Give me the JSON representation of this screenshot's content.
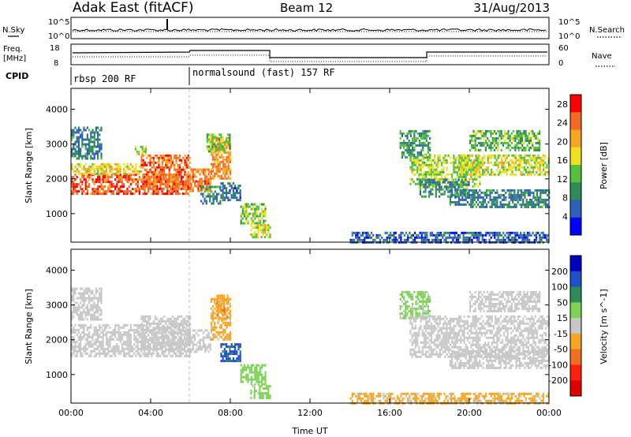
{
  "header": {
    "station": "Adak East (fitACF)",
    "beam": "Beam 12",
    "date": "31/Aug/2013"
  },
  "labels": {
    "nsky": "N.Sky",
    "nsearch": "N.Search",
    "freq_line1": "Freq.",
    "freq_line2": "[MHz]",
    "nave": "Nave",
    "cpid": "CPID",
    "nsky_tick_hi": "10^5",
    "nsky_tick_lo": "10^0",
    "nsearch_tick_hi": "10^5",
    "nsearch_tick_lo": "10^0",
    "freq_tick_hi": "18",
    "freq_tick_lo": "8",
    "nave_tick_hi": "60",
    "nave_tick_lo": "0"
  },
  "cpid_segments": [
    {
      "label": "rbsp 200 RF",
      "start": 0.0,
      "end": 6.0
    },
    {
      "label": "normalsound (fast) 157 RF",
      "start": 6.0,
      "end": 24.0
    }
  ],
  "chart_data": [
    {
      "type": "heatmap",
      "title": "",
      "xlabel": "Time UT",
      "ylabel": "Slant Range [km]",
      "xlim": [
        0,
        24
      ],
      "ylim": [
        180,
        4600
      ],
      "x_ticks": [
        "00:00",
        "04:00",
        "08:00",
        "12:00",
        "16:00",
        "20:00",
        "00:00"
      ],
      "y_ticks": [
        1000,
        2000,
        3000,
        4000
      ],
      "colorbar": {
        "label": "Power [dB]",
        "ticks": [
          4,
          8,
          12,
          16,
          20,
          24,
          28
        ],
        "range": [
          0,
          30
        ],
        "colors": [
          "#0000ff",
          "#2f5fb8",
          "#2e8b57",
          "#55c03c",
          "#f0e020",
          "#f5a623",
          "#f36b22",
          "#ff0000"
        ]
      },
      "bands": [
        {
          "t0": 0.0,
          "t1": 6.0,
          "lo": 1550,
          "hi": 2150,
          "v": 25
        },
        {
          "t0": 0.0,
          "t1": 3.5,
          "lo": 2150,
          "hi": 2450,
          "v": 18
        },
        {
          "t0": 3.5,
          "t1": 6.0,
          "lo": 1700,
          "hi": 2700,
          "v": 24
        },
        {
          "t0": 6.0,
          "t1": 7.0,
          "lo": 1650,
          "hi": 2300,
          "v": 23
        },
        {
          "t0": 7.0,
          "t1": 8.0,
          "lo": 2000,
          "hi": 3200,
          "v": 22
        },
        {
          "t0": 6.8,
          "t1": 8.0,
          "lo": 2800,
          "hi": 3300,
          "v": 14
        },
        {
          "t0": 6.5,
          "t1": 7.5,
          "lo": 1300,
          "hi": 1800,
          "v": 9
        },
        {
          "t0": 7.5,
          "t1": 8.5,
          "lo": 1400,
          "hi": 1900,
          "v": 7
        },
        {
          "t0": 8.5,
          "t1": 9.8,
          "lo": 700,
          "hi": 1300,
          "v": 14
        },
        {
          "t0": 9.0,
          "t1": 10.0,
          "lo": 350,
          "hi": 700,
          "v": 16
        },
        {
          "t0": 0.0,
          "t1": 1.5,
          "lo": 2600,
          "hi": 3500,
          "v": 8
        },
        {
          "t0": 3.2,
          "t1": 3.8,
          "lo": 2700,
          "hi": 2950,
          "v": 16
        },
        {
          "t0": 14.0,
          "t1": 24.0,
          "lo": 200,
          "hi": 480,
          "v": 6
        },
        {
          "t0": 16.5,
          "t1": 18.0,
          "lo": 2600,
          "hi": 3400,
          "v": 10
        },
        {
          "t0": 17.0,
          "t1": 20.5,
          "lo": 1750,
          "hi": 2700,
          "v": 15
        },
        {
          "t0": 17.5,
          "t1": 20.0,
          "lo": 1500,
          "hi": 2000,
          "v": 9
        },
        {
          "t0": 19.0,
          "t1": 24.0,
          "lo": 1200,
          "hi": 1700,
          "v": 8
        },
        {
          "t0": 19.5,
          "t1": 24.0,
          "lo": 2100,
          "hi": 2700,
          "v": 16
        },
        {
          "t0": 20.0,
          "t1": 23.5,
          "lo": 2800,
          "hi": 3400,
          "v": 12
        }
      ]
    },
    {
      "type": "heatmap",
      "title": "",
      "xlabel": "Time UT",
      "ylabel": "Slant Range [km]",
      "xlim": [
        0,
        24
      ],
      "ylim": [
        180,
        4600
      ],
      "x_ticks": [
        "00:00",
        "04:00",
        "08:00",
        "12:00",
        "16:00",
        "20:00",
        "00:00"
      ],
      "y_ticks": [
        1000,
        2000,
        3000,
        4000
      ],
      "colorbar": {
        "label": "Velocity [m s^-1]",
        "ticks": [
          200,
          100,
          50,
          15,
          -15,
          -50,
          -100,
          -200
        ],
        "range": [
          -250,
          250
        ],
        "colors": [
          "#0000c0",
          "#1e50c8",
          "#2e8b57",
          "#7ed357",
          "#c8c8c8",
          "#f5a623",
          "#f07020",
          "#ff2010",
          "#e00000"
        ]
      },
      "bands": [
        {
          "t0": 0.0,
          "t1": 6.0,
          "lo": 1500,
          "hi": 2450,
          "v": 0
        },
        {
          "t0": 3.5,
          "t1": 6.0,
          "lo": 1700,
          "hi": 2700,
          "v": 0
        },
        {
          "t0": 6.0,
          "t1": 7.0,
          "lo": 1650,
          "hi": 2300,
          "v": 0
        },
        {
          "t0": 7.0,
          "t1": 8.0,
          "lo": 2000,
          "hi": 3200,
          "v": -40
        },
        {
          "t0": 7.3,
          "t1": 7.9,
          "lo": 2600,
          "hi": 3300,
          "v": -70
        },
        {
          "t0": 7.5,
          "t1": 8.5,
          "lo": 1400,
          "hi": 1900,
          "v": 150
        },
        {
          "t0": 8.5,
          "t1": 9.8,
          "lo": 700,
          "hi": 1300,
          "v": 60
        },
        {
          "t0": 9.0,
          "t1": 10.0,
          "lo": 350,
          "hi": 700,
          "v": 40
        },
        {
          "t0": 0.0,
          "t1": 1.5,
          "lo": 2600,
          "hi": 3500,
          "v": 0
        },
        {
          "t0": 14.0,
          "t1": 24.0,
          "lo": 200,
          "hi": 480,
          "v": -40
        },
        {
          "t0": 16.5,
          "t1": 18.0,
          "lo": 2600,
          "hi": 3400,
          "v": 40
        },
        {
          "t0": 17.0,
          "t1": 24.0,
          "lo": 1500,
          "hi": 2700,
          "v": 0
        },
        {
          "t0": 19.0,
          "t1": 24.0,
          "lo": 1200,
          "hi": 1700,
          "v": 0
        },
        {
          "t0": 20.0,
          "t1": 23.5,
          "lo": 2800,
          "hi": 3400,
          "v": 0
        }
      ]
    }
  ]
}
